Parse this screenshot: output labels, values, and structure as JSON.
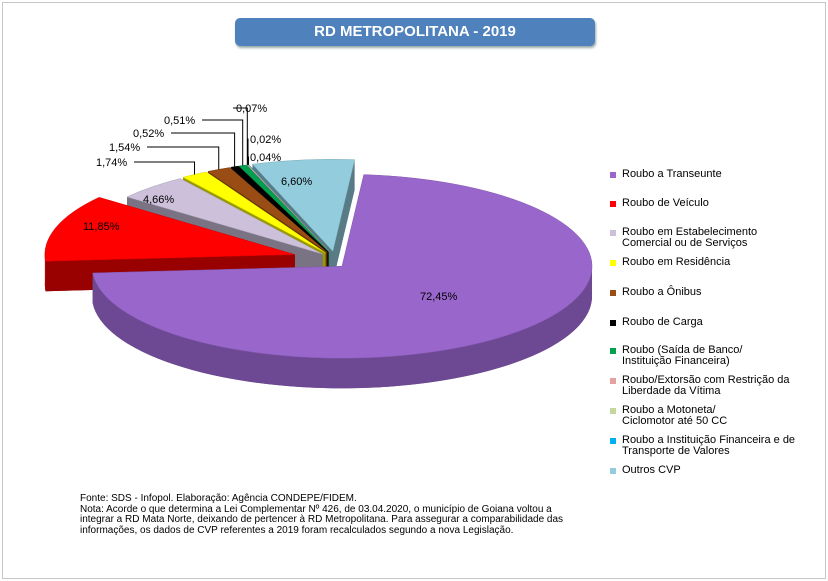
{
  "chart_data": {
    "type": "pie",
    "title": "RD METROPOLITANA - 2019",
    "categories": [
      "Roubo a Transeunte",
      "Roubo de Veículo",
      "Roubo em Estabelecimento Comercial ou de Serviços",
      "Roubo em Residência",
      "Roubo a Ônibus",
      "Roubo de Carga",
      "Roubo (Saída de Banco/ Instituição Financeira)",
      "Roubo/Extorsão com Restrição da Liberdade da Vítima",
      "Roubo a Motoneta/ Ciclomotor até 50 CC",
      "Roubo a Instituição Financeira e de Transporte de Valores",
      "Outros CVP"
    ],
    "values": [
      72.45,
      11.85,
      4.66,
      1.74,
      1.54,
      0.52,
      0.51,
      0.07,
      0.02,
      0.04,
      6.6
    ],
    "value_labels": [
      "72,45%",
      "11,85%",
      "4,66%",
      "1,74%",
      "1,54%",
      "0,52%",
      "0,51%",
      "0,07%",
      "0,02%",
      "0,04%",
      "6,60%"
    ],
    "colors": [
      "#9966cc",
      "#ff0000",
      "#ccc0da",
      "#ffff00",
      "#994c14",
      "#000000",
      "#00a050",
      "#e6a0a0",
      "#c3d69b",
      "#00b0f0",
      "#93cddd"
    ],
    "legend": "right",
    "source": "Fonte: SDS - Infopol.  Elaboração: Agência CONDEPE/FIDEM.",
    "note": [
      "Nota: Acorde o que determina a Lei  Complementar Nº 426, de 03.04.2020, o município de Goiana voltou a",
      "integrar a RD Mata Norte, deixando de pertencer à RD Metropolitana. Para assegurar a comparabilidade das",
      "informações, os dados de CVP referentes a 2019 foram recalculados segundo a nova Legislação."
    ]
  }
}
